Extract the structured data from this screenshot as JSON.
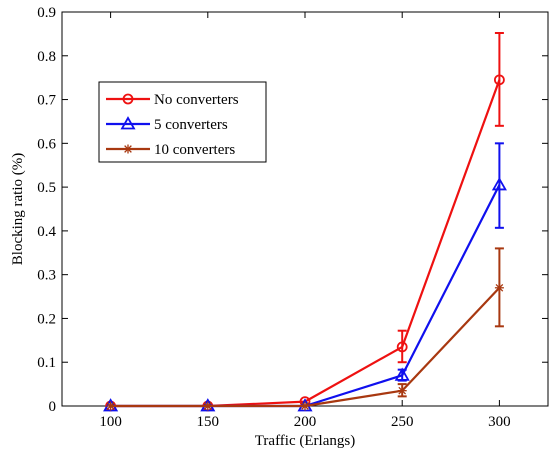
{
  "chart_data": {
    "type": "line",
    "title": "",
    "xlabel": "Traffic (Erlangs)",
    "ylabel": "Blocking ratio (%)",
    "xlim": [
      75,
      325
    ],
    "ylim": [
      0,
      0.9
    ],
    "x": [
      100,
      150,
      200,
      250,
      300
    ],
    "xticks": [
      100,
      150,
      200,
      250,
      300
    ],
    "yticks": [
      0,
      0.1,
      0.2,
      0.3,
      0.4,
      0.5,
      0.6,
      0.7,
      0.8,
      0.9
    ],
    "xtick_labels": [
      "100",
      "150",
      "200",
      "250",
      "300"
    ],
    "ytick_labels": [
      "0",
      "0.1",
      "0.2",
      "0.3",
      "0.4",
      "0.5",
      "0.6",
      "0.7",
      "0.8",
      "0.9"
    ],
    "grid": false,
    "legend_position": "upper-left",
    "series": [
      {
        "name": "No converters",
        "color": "#ee1111",
        "marker": "circle",
        "values": [
          0,
          0,
          0.01,
          0.135,
          0.745
        ],
        "err_low": [
          0,
          0,
          0,
          0.1,
          0.64
        ],
        "err_high": [
          0,
          0,
          0,
          0.172,
          0.852
        ]
      },
      {
        "name": "5 converters",
        "color": "#1010ee",
        "marker": "triangle",
        "values": [
          0,
          0,
          0,
          0.07,
          0.505
        ],
        "err_low": [
          0,
          0,
          0,
          0.058,
          0.407
        ],
        "err_high": [
          0,
          0,
          0,
          0.083,
          0.6
        ]
      },
      {
        "name": "10 converters",
        "color": "#a83810",
        "marker": "star",
        "values": [
          0,
          0,
          0,
          0.035,
          0.27
        ],
        "err_low": [
          0,
          0,
          0,
          0.022,
          0.182
        ],
        "err_high": [
          0,
          0,
          0,
          0.05,
          0.36
        ]
      }
    ]
  }
}
